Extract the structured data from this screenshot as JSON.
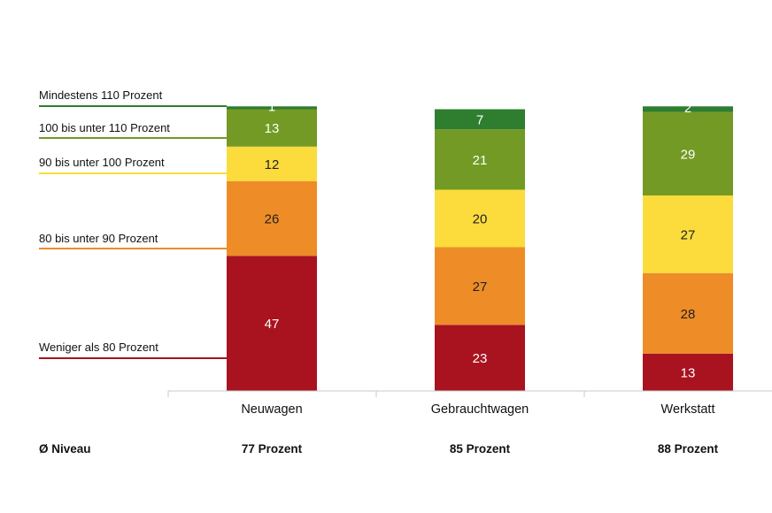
{
  "chart_data": {
    "type": "bar",
    "stacked": true,
    "ylim": [
      0,
      100
    ],
    "grid": false,
    "categories": [
      "Neuwagen",
      "Gebrauchtwagen",
      "Werkstatt"
    ],
    "series": [
      {
        "name": "Weniger als 80 Prozent",
        "color": "#a8131f",
        "label_color": "#ffffff",
        "values": [
          47,
          23,
          13
        ]
      },
      {
        "name": "80 bis unter 90 Prozent",
        "color": "#ee8c27",
        "label_color": "#222222",
        "values": [
          26,
          27,
          28
        ]
      },
      {
        "name": "90 bis unter 100 Prozent",
        "color": "#fbdc3c",
        "label_color": "#222222",
        "values": [
          12,
          20,
          27
        ]
      },
      {
        "name": "100 bis unter 110 Prozent",
        "color": "#739a24",
        "label_color": "#ffffff",
        "values": [
          13,
          21,
          29
        ]
      },
      {
        "name": "Mindestens 110 Prozent",
        "color": "#2f7d2f",
        "label_color": "#ffffff",
        "values": [
          1,
          7,
          2
        ]
      }
    ],
    "average": {
      "label": "Ø Niveau",
      "values": [
        "77 Prozent",
        "85 Prozent",
        "88 Prozent"
      ]
    }
  }
}
